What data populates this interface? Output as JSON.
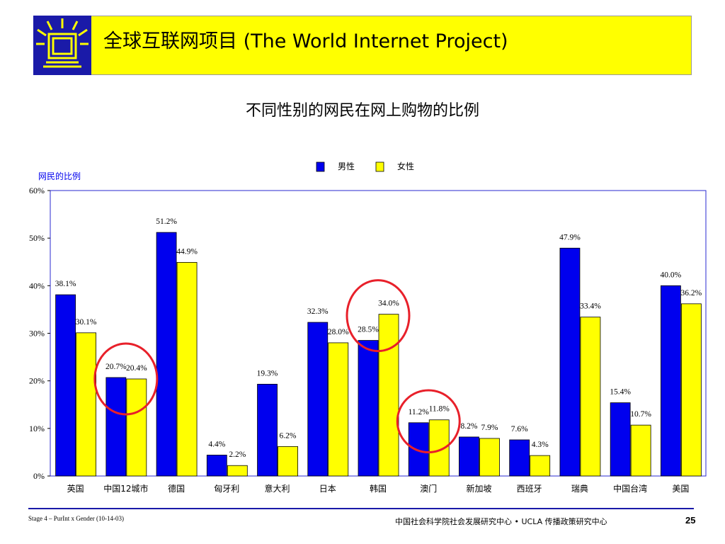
{
  "banner": {
    "title": "全球互联网项目 (The World Internet Project)",
    "bg_color": "#ffff00",
    "logo_color": "#1a1aa8",
    "logo_icon": "world-internet-project-logo-icon"
  },
  "slide_title": "不同性别的网民在网上购物的比例",
  "chart_data": {
    "type": "bar",
    "title": "",
    "ylabel": "网民的比例",
    "xlabel": "",
    "ylim": [
      0,
      60
    ],
    "yticks": [
      "0%",
      "10%",
      "20%",
      "30%",
      "40%",
      "50%",
      "60%"
    ],
    "legend_position": "top-center",
    "grid": false,
    "categories": [
      "英国",
      "中国12城市",
      "德国",
      "匈牙利",
      "意大利",
      "日本",
      "韩国",
      "澳门",
      "新加坡",
      "西班牙",
      "瑞典",
      "中国台湾",
      "美国"
    ],
    "series": [
      {
        "name": "男性",
        "color": "#0000ee",
        "values": [
          38.1,
          20.7,
          51.2,
          4.4,
          19.3,
          32.3,
          28.5,
          11.2,
          8.2,
          7.6,
          47.9,
          15.4,
          40.0
        ],
        "labels": [
          "38.1%",
          "20.7%",
          "51.2%",
          "4.4%",
          "19.3%",
          "32.3%",
          "28.5%",
          "11.2%",
          "8.2%",
          "7.6%",
          "47.9%",
          "15.4%",
          "40.0%"
        ]
      },
      {
        "name": "女性",
        "color": "#ffff00",
        "values": [
          30.1,
          20.4,
          44.9,
          2.2,
          6.2,
          28.0,
          34.0,
          11.8,
          7.9,
          4.3,
          33.4,
          10.7,
          36.2
        ],
        "labels": [
          "30.1%",
          "20.4%",
          "44.9%",
          "2.2%",
          "6.2%",
          "28.0%",
          "34.0%",
          "11.8%",
          "7.9%",
          "4.3%",
          "33.4%",
          "10.7%",
          "36.2%"
        ]
      }
    ],
    "highlights": [
      {
        "category": "中国12城市",
        "color": "#e8202a"
      },
      {
        "category": "韩国",
        "color": "#e8202a"
      },
      {
        "category": "澳门",
        "color": "#e8202a"
      }
    ]
  },
  "footer": {
    "left": "Stage 4 – PurInt x Gender (10-14-03)",
    "middle": "中国社会科学院社会发展研究中心 • UCLA 传播政策研究中心",
    "page": "25",
    "line_color": "#1a1aa8"
  }
}
